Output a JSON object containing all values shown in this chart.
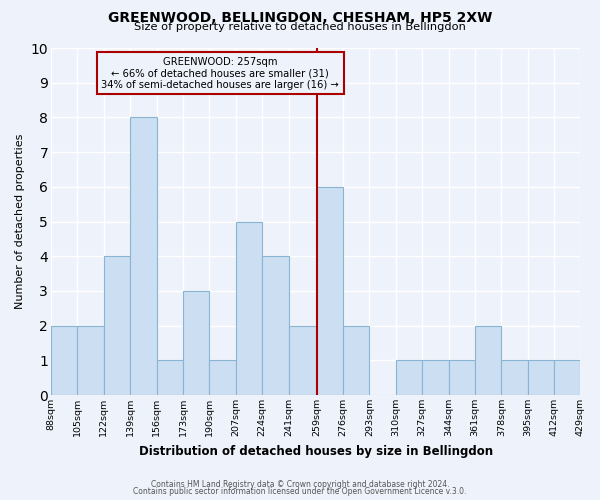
{
  "title": "GREENWOOD, BELLINGDON, CHESHAM, HP5 2XW",
  "subtitle": "Size of property relative to detached houses in Bellingdon",
  "xlabel": "Distribution of detached houses by size in Bellingdon",
  "ylabel": "Number of detached properties",
  "bin_edges": [
    88,
    105,
    122,
    139,
    156,
    173,
    190,
    207,
    224,
    241,
    259,
    276,
    293,
    310,
    327,
    344,
    361,
    378,
    395,
    412,
    429
  ],
  "bin_labels": [
    "88sqm",
    "105sqm",
    "122sqm",
    "139sqm",
    "156sqm",
    "173sqm",
    "190sqm",
    "207sqm",
    "224sqm",
    "241sqm",
    "259sqm",
    "276sqm",
    "293sqm",
    "310sqm",
    "327sqm",
    "344sqm",
    "361sqm",
    "378sqm",
    "395sqm",
    "412sqm",
    "429sqm"
  ],
  "bar_heights": [
    2,
    2,
    4,
    8,
    1,
    3,
    1,
    5,
    4,
    2,
    6,
    2,
    0,
    1,
    1,
    1,
    2,
    1,
    1,
    1
  ],
  "bar_color": "#ccdff2",
  "bar_edge_color": "#8ab4d4",
  "vline_value": 259,
  "vline_color": "#aa0000",
  "annotation_title": "GREENWOOD: 257sqm",
  "annotation_line1": "← 66% of detached houses are smaller (31)",
  "annotation_line2": "34% of semi-detached houses are larger (16) →",
  "annotation_box_edgecolor": "#aa0000",
  "ylim": [
    0,
    10
  ],
  "yticks": [
    0,
    1,
    2,
    3,
    4,
    5,
    6,
    7,
    8,
    9,
    10
  ],
  "footnote1": "Contains HM Land Registry data © Crown copyright and database right 2024.",
  "footnote2": "Contains public sector information licensed under the Open Government Licence v.3.0.",
  "background_color": "#eef2fa",
  "grid_color": "#ffffff"
}
